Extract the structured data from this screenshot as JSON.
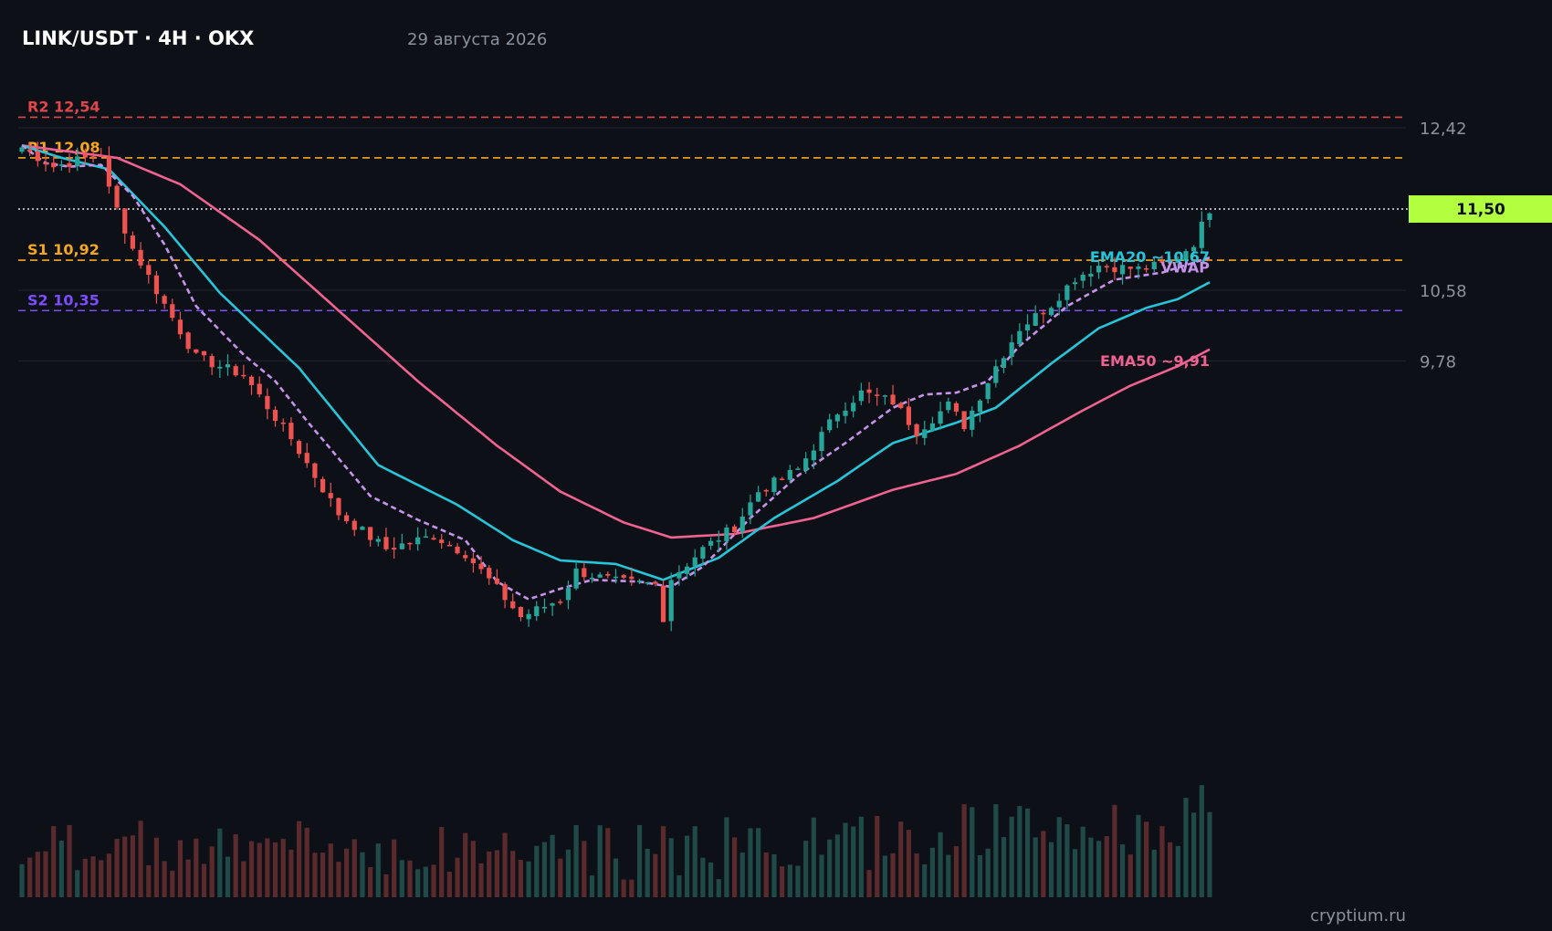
{
  "header": {
    "symbol": "LINK/USDT · 4H · OKX",
    "date": "29 августа 2026"
  },
  "watermark": "cryptium.ru",
  "colors": {
    "background": "#0d1017",
    "grid": "#1e232b",
    "up": "#26a69a",
    "down": "#ef5350",
    "ema20": "#26c6da",
    "ema50": "#f06292",
    "vwap": "#c792ea",
    "r2": "#e0474c",
    "r1": "#f5a623",
    "s1": "#f5a623",
    "s2": "#7c4dff",
    "price_badge": "#b2ff3f",
    "axis_text": "#8b929b"
  },
  "chart_data": {
    "type": "candlestick",
    "y_ticks": [
      "12,42",
      "10,58",
      "9,78"
    ],
    "y_tick_values": [
      12.42,
      10.58,
      9.78
    ],
    "last_price_label": "11,50",
    "last_price": 11.5,
    "levels": [
      {
        "label": "R2 12,54",
        "value": 12.54,
        "color": "#e0474c"
      },
      {
        "label": "R1 12,08",
        "value": 12.08,
        "color": "#f5a623"
      },
      {
        "label": "S1 10,92",
        "value": 10.92,
        "color": "#f5a623"
      },
      {
        "label": "S2 10,35",
        "value": 10.35,
        "color": "#7c4dff"
      }
    ],
    "indicator_labels": {
      "ema20": "EMA20 ~10,67",
      "vwap": "VWAP",
      "ema50": "EMA50 ~9,91"
    },
    "close_anchors": [
      [
        0,
        12.2
      ],
      [
        4,
        11.98
      ],
      [
        10,
        12.12
      ],
      [
        11,
        11.72
      ],
      [
        14,
        11.05
      ],
      [
        18,
        10.42
      ],
      [
        22,
        9.82
      ],
      [
        28,
        9.62
      ],
      [
        34,
        8.9
      ],
      [
        40,
        8.05
      ],
      [
        46,
        7.65
      ],
      [
        52,
        7.8
      ],
      [
        56,
        7.6
      ],
      [
        60,
        7.2
      ],
      [
        63,
        6.88
      ],
      [
        68,
        7.08
      ],
      [
        70,
        7.4
      ],
      [
        75,
        7.28
      ],
      [
        80,
        7.25
      ],
      [
        81,
        6.88
      ],
      [
        82,
        7.32
      ],
      [
        86,
        7.65
      ],
      [
        90,
        7.9
      ],
      [
        93,
        8.3
      ],
      [
        98,
        8.55
      ],
      [
        103,
        9.2
      ],
      [
        106,
        9.42
      ],
      [
        110,
        9.32
      ],
      [
        113,
        8.98
      ],
      [
        117,
        9.28
      ],
      [
        119,
        9.05
      ],
      [
        123,
        9.72
      ],
      [
        126,
        10.15
      ],
      [
        130,
        10.42
      ],
      [
        133,
        10.72
      ],
      [
        136,
        10.86
      ],
      [
        141,
        10.82
      ],
      [
        145,
        10.88
      ],
      [
        148,
        11.12
      ],
      [
        150,
        11.5
      ]
    ],
    "ema20_anchors": [
      [
        0,
        12.22
      ],
      [
        5,
        12.08
      ],
      [
        11,
        11.95
      ],
      [
        18,
        11.3
      ],
      [
        25,
        10.55
      ],
      [
        35,
        9.7
      ],
      [
        45,
        8.6
      ],
      [
        55,
        8.15
      ],
      [
        62,
        7.75
      ],
      [
        68,
        7.52
      ],
      [
        75,
        7.48
      ],
      [
        81,
        7.3
      ],
      [
        88,
        7.55
      ],
      [
        95,
        8.0
      ],
      [
        103,
        8.42
      ],
      [
        110,
        8.85
      ],
      [
        118,
        9.08
      ],
      [
        123,
        9.25
      ],
      [
        130,
        9.75
      ],
      [
        136,
        10.15
      ],
      [
        142,
        10.38
      ],
      [
        146,
        10.48
      ],
      [
        150,
        10.67
      ]
    ],
    "ema50_anchors": [
      [
        0,
        12.22
      ],
      [
        12,
        12.08
      ],
      [
        20,
        11.78
      ],
      [
        30,
        11.15
      ],
      [
        40,
        10.35
      ],
      [
        50,
        9.55
      ],
      [
        60,
        8.82
      ],
      [
        68,
        8.3
      ],
      [
        76,
        7.95
      ],
      [
        82,
        7.78
      ],
      [
        90,
        7.82
      ],
      [
        100,
        8.0
      ],
      [
        110,
        8.32
      ],
      [
        118,
        8.5
      ],
      [
        126,
        8.82
      ],
      [
        134,
        9.22
      ],
      [
        140,
        9.5
      ],
      [
        146,
        9.72
      ],
      [
        150,
        9.91
      ]
    ],
    "vwap_anchors": [
      [
        0,
        12.22
      ],
      [
        3,
        12.02
      ],
      [
        6,
        11.98
      ],
      [
        10,
        12.0
      ],
      [
        14,
        11.65
      ],
      [
        18,
        11.1
      ],
      [
        22,
        10.4
      ],
      [
        28,
        9.85
      ],
      [
        32,
        9.55
      ],
      [
        36,
        9.1
      ],
      [
        44,
        8.25
      ],
      [
        50,
        7.98
      ],
      [
        56,
        7.75
      ],
      [
        60,
        7.28
      ],
      [
        64,
        7.08
      ],
      [
        68,
        7.2
      ],
      [
        72,
        7.3
      ],
      [
        78,
        7.28
      ],
      [
        82,
        7.22
      ],
      [
        86,
        7.45
      ],
      [
        92,
        8.0
      ],
      [
        98,
        8.48
      ],
      [
        104,
        8.85
      ],
      [
        110,
        9.25
      ],
      [
        114,
        9.4
      ],
      [
        118,
        9.42
      ],
      [
        122,
        9.55
      ],
      [
        126,
        9.95
      ],
      [
        132,
        10.4
      ],
      [
        138,
        10.7
      ],
      [
        144,
        10.78
      ],
      [
        150,
        10.95
      ]
    ],
    "n_candles": 151,
    "y_range": [
      6.0,
      13.0
    ]
  }
}
